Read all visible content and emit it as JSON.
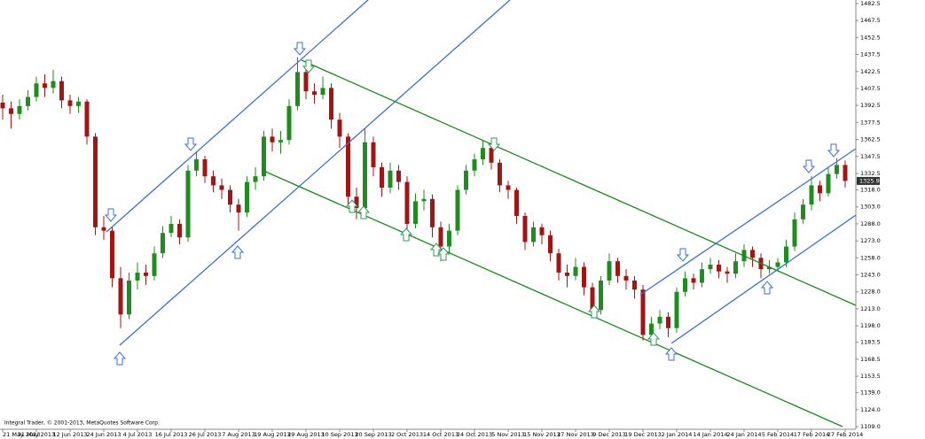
{
  "chart_data": {
    "type": "candlestick",
    "categories": [
      "21 May 2013",
      null,
      null,
      null,
      "31 May 2013",
      null,
      null,
      null,
      "12 Jun 2013",
      null,
      null,
      null,
      "24 Jun 2013",
      null,
      null,
      null,
      "4 Jul 2013",
      null,
      null,
      null,
      "16 Jul 2013",
      null,
      null,
      null,
      "26 Jul 2013",
      null,
      null,
      null,
      "7 Aug 2013",
      null,
      null,
      null,
      "19 Aug 2013",
      null,
      null,
      null,
      "29 Aug 2013",
      null,
      null,
      null,
      "10 Sep 2013",
      null,
      null,
      null,
      "20 Sep 2013",
      null,
      null,
      null,
      "2 Oct 2013",
      null,
      null,
      null,
      "14 Oct 2013",
      null,
      null,
      null,
      "24 Oct 2013",
      null,
      null,
      null,
      "5 Nov 2013",
      null,
      null,
      null,
      "15 Nov 2013",
      null,
      null,
      null,
      "27 Nov 2013",
      null,
      null,
      null,
      "9 Dec 2013",
      null,
      null,
      null,
      "19 Dec 2013",
      null,
      null,
      null,
      "2 Jan 2014",
      null,
      null,
      null,
      "14 Jan 2014",
      null,
      null,
      null,
      "24 Jan 2014",
      null,
      null,
      null,
      "5 Feb 2014",
      null,
      null,
      null,
      "17 Feb 2014",
      null,
      null,
      null,
      "27 Feb 2014"
    ],
    "open": [
      1395,
      1390,
      1385,
      1392,
      1400,
      1412,
      1408,
      1414,
      1397,
      1392,
      1396,
      1365,
      1285,
      1282,
      1240,
      1208,
      1238,
      1245,
      1242,
      1262,
      1280,
      1288,
      1276,
      1335,
      1345,
      1330,
      1322,
      1318,
      1305,
      1298,
      1325,
      1330,
      1365,
      1360,
      1362,
      1392,
      1422,
      1405,
      1402,
      1408,
      1380,
      1365,
      1312,
      1302,
      1360,
      1338,
      1320,
      1335,
      1325,
      1288,
      1308,
      1310,
      1285,
      1268,
      1282,
      1318,
      1335,
      1345,
      1355,
      1342,
      1322,
      1318,
      1295,
      1272,
      1285,
      1278,
      1262,
      1245,
      1242,
      1250,
      1232,
      1212,
      1238,
      1255,
      1242,
      1238,
      1230,
      1190,
      1200,
      1206,
      1196,
      1228,
      1240,
      1236,
      1248,
      1252,
      1246,
      1244,
      1255,
      1265,
      1258,
      1248,
      1250,
      1254,
      1268,
      1292,
      1305,
      1322,
      1315,
      1332,
      1340
    ],
    "high": [
      1402,
      1396,
      1398,
      1406,
      1418,
      1420,
      1424,
      1418,
      1402,
      1400,
      1398,
      1368,
      1295,
      1286,
      1250,
      1245,
      1254,
      1252,
      1268,
      1286,
      1295,
      1292,
      1340,
      1352,
      1348,
      1335,
      1328,
      1322,
      1310,
      1330,
      1338,
      1370,
      1372,
      1370,
      1398,
      1435,
      1428,
      1412,
      1418,
      1412,
      1386,
      1368,
      1320,
      1372,
      1365,
      1342,
      1342,
      1340,
      1330,
      1315,
      1318,
      1314,
      1290,
      1288,
      1322,
      1340,
      1350,
      1362,
      1358,
      1345,
      1326,
      1320,
      1298,
      1290,
      1288,
      1282,
      1266,
      1252,
      1258,
      1254,
      1236,
      1242,
      1262,
      1258,
      1248,
      1242,
      1234,
      1206,
      1212,
      1210,
      1232,
      1246,
      1244,
      1254,
      1258,
      1256,
      1250,
      1262,
      1270,
      1268,
      1262,
      1256,
      1258,
      1274,
      1298,
      1310,
      1330,
      1326,
      1338,
      1346,
      1344
    ],
    "low": [
      1380,
      1372,
      1380,
      1388,
      1396,
      1400,
      1403,
      1390,
      1385,
      1386,
      1358,
      1278,
      1274,
      1232,
      1196,
      1204,
      1230,
      1234,
      1238,
      1258,
      1276,
      1270,
      1272,
      1330,
      1324,
      1316,
      1310,
      1298,
      1282,
      1294,
      1318,
      1326,
      1352,
      1350,
      1358,
      1388,
      1398,
      1394,
      1398,
      1372,
      1355,
      1305,
      1292,
      1298,
      1330,
      1312,
      1315,
      1318,
      1280,
      1284,
      1300,
      1276,
      1255,
      1262,
      1278,
      1314,
      1330,
      1340,
      1336,
      1316,
      1310,
      1288,
      1265,
      1268,
      1270,
      1255,
      1238,
      1232,
      1238,
      1225,
      1205,
      1208,
      1234,
      1236,
      1230,
      1222,
      1185,
      1186,
      1195,
      1188,
      1192,
      1224,
      1230,
      1232,
      1244,
      1240,
      1236,
      1240,
      1250,
      1250,
      1240,
      1244,
      1246,
      1250,
      1264,
      1288,
      1300,
      1308,
      1312,
      1328,
      1320
    ],
    "close": [
      1390,
      1385,
      1392,
      1400,
      1412,
      1408,
      1414,
      1397,
      1392,
      1396,
      1365,
      1285,
      1282,
      1240,
      1208,
      1238,
      1245,
      1242,
      1262,
      1280,
      1288,
      1276,
      1335,
      1345,
      1330,
      1322,
      1318,
      1305,
      1298,
      1325,
      1330,
      1365,
      1360,
      1362,
      1392,
      1422,
      1405,
      1402,
      1408,
      1380,
      1365,
      1312,
      1302,
      1360,
      1338,
      1320,
      1335,
      1325,
      1288,
      1308,
      1310,
      1285,
      1268,
      1282,
      1318,
      1335,
      1345,
      1355,
      1342,
      1322,
      1318,
      1295,
      1272,
      1285,
      1278,
      1262,
      1245,
      1242,
      1250,
      1232,
      1212,
      1238,
      1255,
      1242,
      1238,
      1230,
      1190,
      1200,
      1206,
      1196,
      1228,
      1240,
      1236,
      1248,
      1252,
      1246,
      1244,
      1255,
      1265,
      1258,
      1248,
      1250,
      1254,
      1268,
      1292,
      1305,
      1322,
      1315,
      1332,
      1340,
      1325.9
    ],
    "up_color": "#1e8c1e",
    "down_color": "#a01515",
    "ylim": [
      1106.7,
      1485.6
    ],
    "yticks": [
      1482.5,
      1467.5,
      1452.5,
      1437.5,
      1422.5,
      1407.5,
      1392.5,
      1377.5,
      1362.5,
      1347.5,
      1332.5,
      {
        "value": 1318,
        "label": "1318.0"
      },
      {
        "value": 1303,
        "label": "1303.0"
      },
      {
        "value": 1288,
        "label": "1288.0"
      },
      {
        "value": 1273,
        "label": "1273.0"
      },
      {
        "value": 1258,
        "label": "1258.0"
      },
      {
        "value": 1243,
        "label": "1243.0"
      },
      {
        "value": 1228,
        "label": "1228.0"
      },
      {
        "value": 1213,
        "label": "1213.0"
      },
      {
        "value": 1198,
        "label": "1198.0"
      },
      1183.5,
      1168.5,
      1153.5,
      {
        "value": 1139,
        "label": "1139.0"
      },
      {
        "value": 1124,
        "label": "1124.0"
      },
      {
        "value": 1109,
        "label": "1109.0"
      }
    ],
    "last_price": 1325.9,
    "grid": false
  },
  "footer": {
    "copyright": "Integral Trader, © 2001-2013, MetaQuotes Software Corp."
  }
}
